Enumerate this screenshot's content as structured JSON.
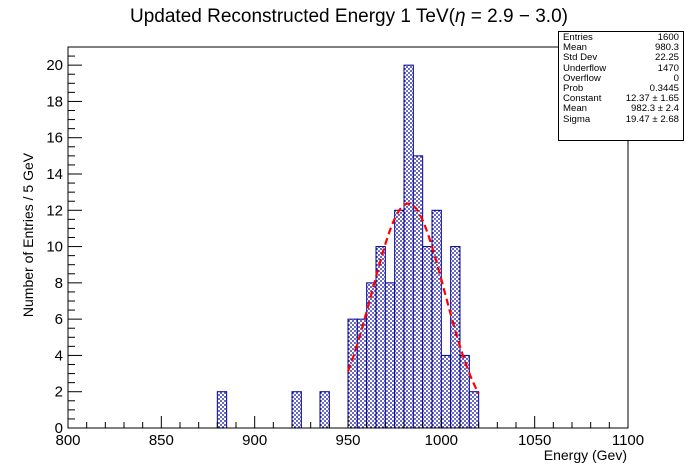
{
  "chart_data": {
    "type": "bar",
    "title": "Updated Reconstructed Energy 1 TeV(",
    "title_eta": "η",
    "title_range": " = 2.9 − 3.0)",
    "xlabel": "Energy (Gev)",
    "ylabel": "Number of Entries / 5 GeV",
    "xlim": [
      800,
      1100
    ],
    "ylim": [
      0,
      21
    ],
    "bin_width": 5,
    "x_ticks": [
      800,
      850,
      900,
      950,
      1000,
      1050,
      1100
    ],
    "y_ticks": [
      0,
      2,
      4,
      6,
      8,
      10,
      12,
      14,
      16,
      18,
      20
    ],
    "bins": [
      {
        "x": 880,
        "value": 2
      },
      {
        "x": 920,
        "value": 2
      },
      {
        "x": 935,
        "value": 2
      },
      {
        "x": 950,
        "value": 6
      },
      {
        "x": 955,
        "value": 6
      },
      {
        "x": 960,
        "value": 8
      },
      {
        "x": 965,
        "value": 10
      },
      {
        "x": 970,
        "value": 8
      },
      {
        "x": 975,
        "value": 12
      },
      {
        "x": 980,
        "value": 20
      },
      {
        "x": 985,
        "value": 15
      },
      {
        "x": 990,
        "value": 10
      },
      {
        "x": 995,
        "value": 12
      },
      {
        "x": 1000,
        "value": 4
      },
      {
        "x": 1005,
        "value": 10
      },
      {
        "x": 1010,
        "value": 4
      },
      {
        "x": 1015,
        "value": 2
      }
    ],
    "fit": {
      "type": "gaussian",
      "constant": 12.37,
      "mean": 982.3,
      "sigma": 19.47,
      "range": [
        950,
        1020
      ],
      "color": "#ff0000"
    },
    "fill_color": "#000099",
    "grid": false,
    "legend": "top-right"
  },
  "stats": [
    {
      "name": "Entries",
      "value": "1600"
    },
    {
      "name": "Mean",
      "value": "980.3"
    },
    {
      "name": "Std Dev",
      "value": "22.25"
    },
    {
      "name": "Underflow",
      "value": "1470"
    },
    {
      "name": "Overflow",
      "value": "0"
    },
    {
      "name": "Prob",
      "value": "0.3445"
    },
    {
      "name": "Constant",
      "value": "12.37 ± 1.65"
    },
    {
      "name": "Mean",
      "value": "982.3 ± 2.4"
    },
    {
      "name": "Sigma",
      "value": "19.47 ± 2.68"
    }
  ]
}
